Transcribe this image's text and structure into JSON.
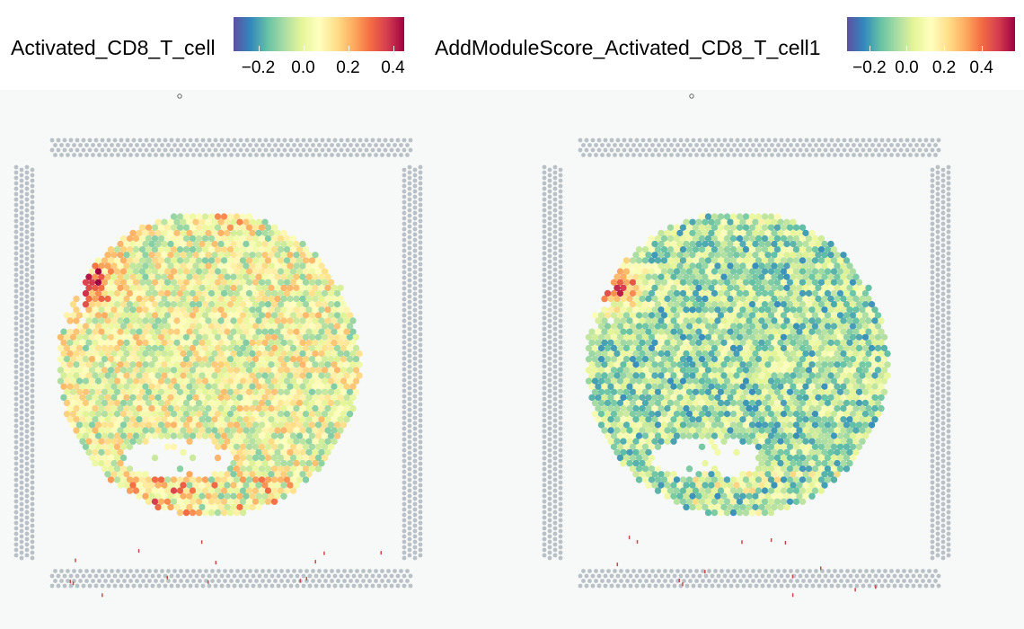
{
  "chart_data": [
    {
      "type": "heatmap",
      "title": "Activated_CD8_T_cell",
      "colorbar": {
        "ticks": [
          "−0.2",
          "0.0",
          "0.2",
          "0.4"
        ],
        "tick_values": [
          -0.2,
          0.0,
          0.2,
          0.4
        ],
        "range": [
          -0.31,
          0.45
        ],
        "palette": [
          "#5e4fa2",
          "#3288bd",
          "#66c2a5",
          "#abdda4",
          "#e6f598",
          "#ffffbf",
          "#fee08b",
          "#fdae61",
          "#f46d43",
          "#d53e4f",
          "#9e0142"
        ]
      },
      "hotspots": [
        {
          "cx": 0.2,
          "cy": 0.36,
          "value": 0.45
        },
        {
          "cx": 0.27,
          "cy": 0.22,
          "value": 0.3
        },
        {
          "cx": 0.55,
          "cy": 0.2,
          "value": 0.25
        },
        {
          "cx": 0.35,
          "cy": 0.78,
          "value": 0.22
        }
      ],
      "mean_value": 0.04
    },
    {
      "type": "heatmap",
      "title": "AddModuleScore_Activated_CD8_T_cell1",
      "colorbar": {
        "ticks": [
          "−0.2",
          "0.0",
          "0.2",
          "0.4"
        ],
        "tick_values": [
          -0.2,
          0.0,
          0.2,
          0.4
        ],
        "range": [
          -0.32,
          0.58
        ],
        "palette": [
          "#5e4fa2",
          "#3288bd",
          "#66c2a5",
          "#abdda4",
          "#e6f598",
          "#ffffbf",
          "#fee08b",
          "#fdae61",
          "#f46d43",
          "#d53e4f",
          "#9e0142"
        ]
      },
      "hotspots": [
        {
          "cx": 0.2,
          "cy": 0.36,
          "value": 0.55
        },
        {
          "cx": 0.25,
          "cy": 0.22,
          "value": 0.3
        },
        {
          "cx": 0.55,
          "cy": 0.2,
          "value": 0.18
        }
      ],
      "mean_value": -0.05
    }
  ]
}
